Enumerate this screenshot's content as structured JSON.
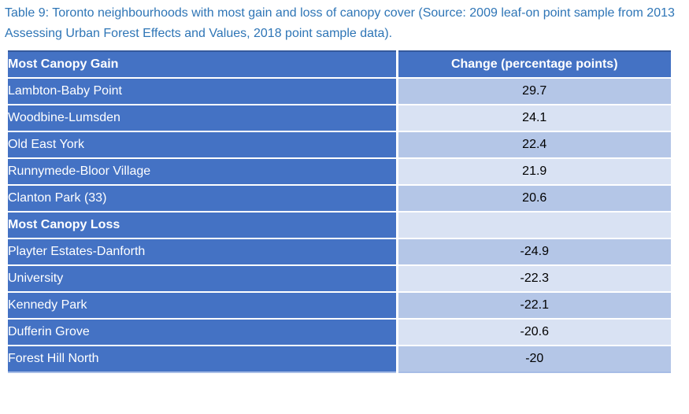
{
  "caption": "Table 9: Toronto neighbourhoods with most gain and loss of canopy cover (Source: 2009 leaf-on point sample from 2013 Assessing Urban Forest Effects and Values, 2018 point sample data).",
  "table": {
    "columns": [
      "Most Canopy Gain",
      "Change (percentage points)"
    ],
    "rows": [
      {
        "label": "Lambton-Baby Point",
        "change": "29.7"
      },
      {
        "label": "Woodbine-Lumsden",
        "change": "24.1"
      },
      {
        "label": "Old East York",
        "change": "22.4"
      },
      {
        "label": "Runnymede-Bloor Village",
        "change": "21.9"
      },
      {
        "label": "Clanton Park (33)",
        "change": "20.6"
      },
      {
        "label": "Most Canopy Loss",
        "change": "",
        "section_header": true
      },
      {
        "label": "Playter Estates-Danforth",
        "change": "-24.9"
      },
      {
        "label": "University",
        "change": "-22.3"
      },
      {
        "label": "Kennedy Park",
        "change": "-22.1"
      },
      {
        "label": "Dufferin Grove",
        "change": "-20.6"
      },
      {
        "label": "Forest Hill North",
        "change": "-20"
      }
    ]
  },
  "colors": {
    "caption_text": "#2E75B6",
    "cell_blue": "#4472C4",
    "band_dark": "#B4C6E7",
    "band_light": "#D9E2F3",
    "header_text": "#FFFFFF",
    "value_text": "#000000",
    "table_top_border": "#35599C"
  }
}
